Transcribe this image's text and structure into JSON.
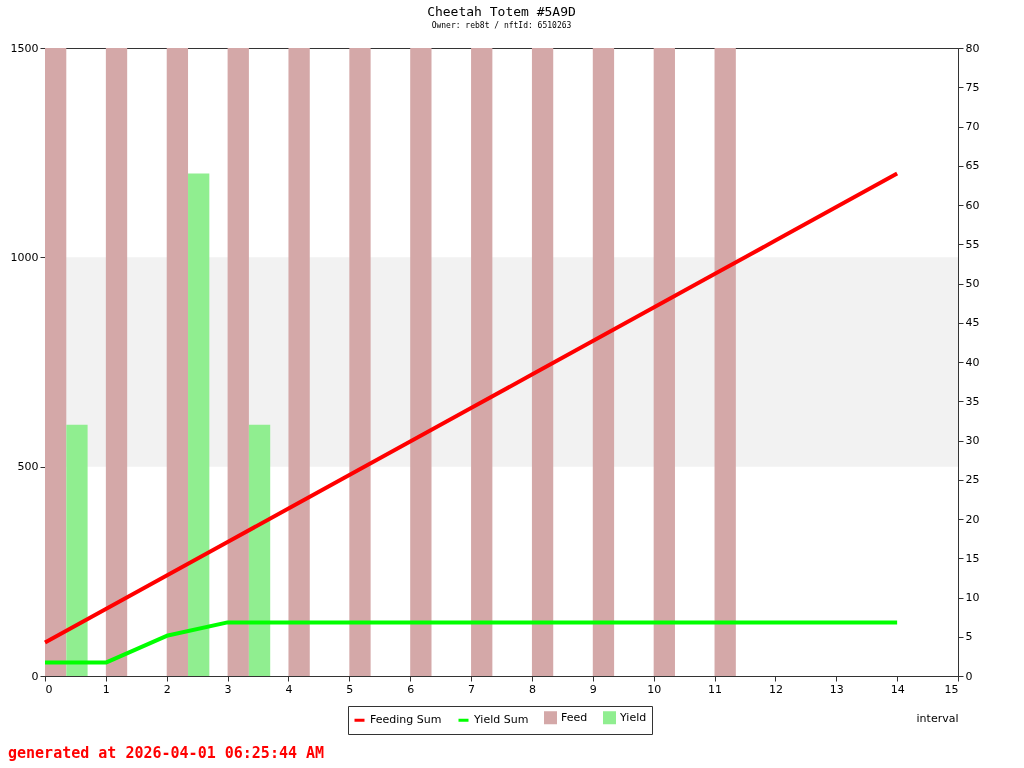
{
  "chart_data": {
    "type": "bar",
    "title": "Cheetah Totem #5A9D",
    "subtitle": "Owner: reb8t / nftId: 6510263",
    "xlabel": "interval",
    "annotations": [
      "generated at 2026-04-01 06:25:44 AM"
    ],
    "xlim": [
      0,
      15
    ],
    "xticks": [
      0,
      1,
      2,
      3,
      4,
      5,
      6,
      7,
      8,
      9,
      10,
      11,
      12,
      13,
      14,
      15
    ],
    "ylim": [
      0,
      1500
    ],
    "yticks": [
      0,
      500,
      1000,
      1500
    ],
    "y2lim": [
      0,
      80
    ],
    "y2ticks": [
      0,
      5,
      10,
      15,
      20,
      25,
      30,
      35,
      40,
      45,
      50,
      55,
      60,
      65,
      70,
      75,
      80
    ],
    "series": [
      {
        "name": "Feeding Sum",
        "type": "line",
        "color": "#ff0000",
        "x": [
          0,
          1,
          2,
          3,
          4,
          5,
          6,
          7,
          8,
          9,
          10,
          11,
          12,
          13,
          14
        ],
        "values": [
          80,
          160,
          240,
          320,
          400,
          480,
          560,
          640,
          720,
          800,
          880,
          960,
          1040,
          1120,
          1200
        ]
      },
      {
        "name": "Yield Sum",
        "type": "line",
        "color": "#00ff00",
        "x": [
          0,
          1,
          2,
          3,
          4,
          5,
          6,
          7,
          8,
          9,
          10,
          11,
          12,
          13,
          14
        ],
        "values": [
          32,
          32,
          96,
          128,
          128,
          128,
          128,
          128,
          128,
          128,
          128,
          128,
          128,
          128,
          128
        ]
      },
      {
        "name": "Feed",
        "axis": "y2",
        "color": "#d4a8a8",
        "x": [
          0,
          1,
          2,
          3,
          4,
          5,
          6,
          7,
          8,
          9,
          10,
          11
        ],
        "values": [
          80,
          80,
          80,
          80,
          80,
          80,
          80,
          80,
          80,
          80,
          80,
          80
        ]
      },
      {
        "name": "Yield",
        "axis": "y2",
        "color": "#90ee90",
        "x": [
          0,
          2,
          3
        ],
        "values": [
          32,
          64,
          32
        ]
      }
    ],
    "bands": [
      {
        "axis": "y",
        "from": 500,
        "to": 1000,
        "color": "#f2f2f2"
      }
    ],
    "legend": "bottom"
  }
}
